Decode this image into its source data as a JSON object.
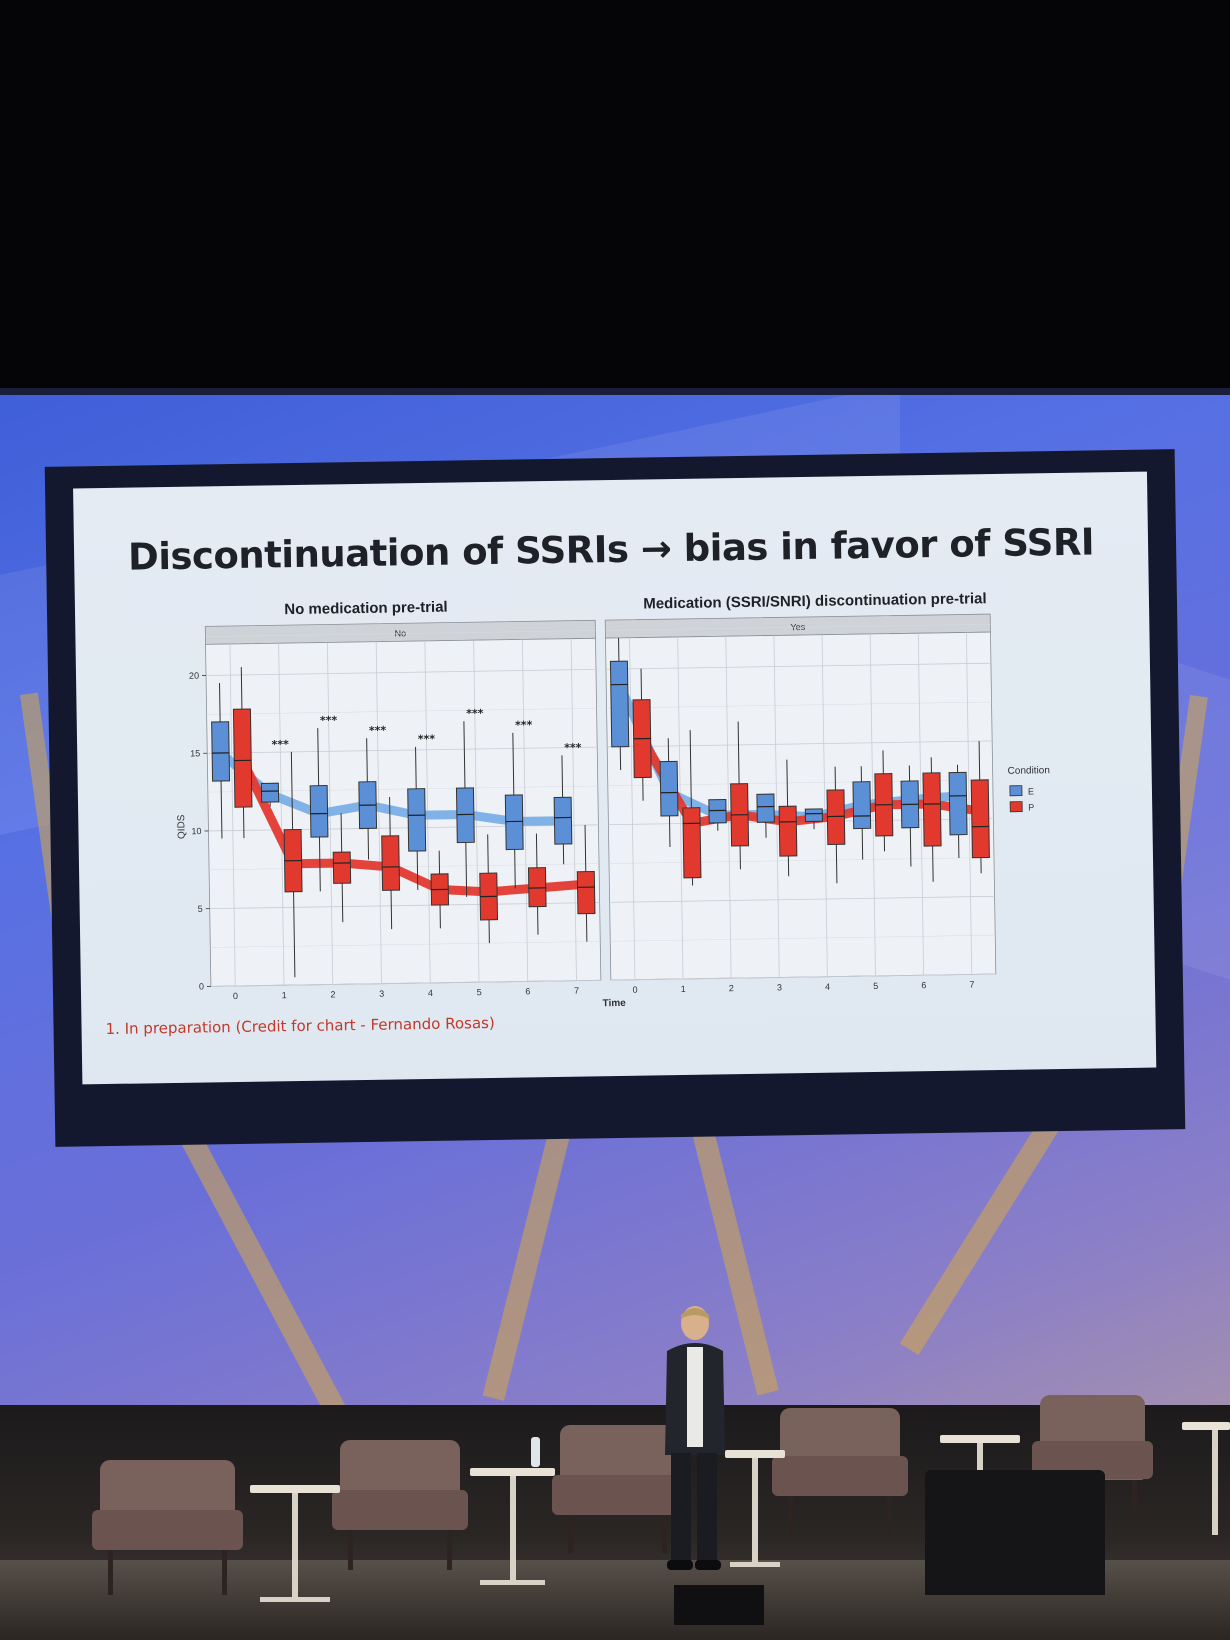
{
  "slide": {
    "title": "Discontinuation of SSRIs → bias in favor of SSRI",
    "footnote": "1. In preparation (Credit for chart - Fernando Rosas)"
  },
  "chart_data": {
    "type": "boxplot",
    "ylabel": "QIDS",
    "xlabel": "Time",
    "ylim": [
      0,
      22
    ],
    "yticks": [
      0,
      5,
      10,
      15,
      20
    ],
    "x": [
      0,
      1,
      2,
      3,
      4,
      5,
      6,
      7
    ],
    "legend": {
      "title": "Condition",
      "position": "right",
      "entries": [
        {
          "label": "E",
          "color": "#5b8fd6"
        },
        {
          "label": "P",
          "color": "#e2392f"
        }
      ]
    },
    "panels": [
      {
        "heading": "No medication pre-trial",
        "strip": "No",
        "significance": [
          "",
          "***",
          "***",
          "***",
          "***",
          "***",
          "***",
          "***"
        ],
        "series": [
          {
            "name": "E",
            "color": "#5b8fd6",
            "mean": [
              15.0,
              12.3,
              11.0,
              11.5,
              10.8,
              10.8,
              10.3,
              10.3
            ],
            "boxes": [
              {
                "min": 9.5,
                "q1": 13.2,
                "median": 15.0,
                "q3": 17.0,
                "max": 19.5
              },
              {
                "min": 11.5,
                "q1": 11.8,
                "median": 12.5,
                "q3": 13.0,
                "max": 13.0
              },
              {
                "min": 6.0,
                "q1": 9.5,
                "median": 11.0,
                "q3": 12.8,
                "max": 16.5
              },
              {
                "min": 8.0,
                "q1": 10.0,
                "median": 11.5,
                "q3": 13.0,
                "max": 15.8
              },
              {
                "min": 6.0,
                "q1": 8.5,
                "median": 10.8,
                "q3": 12.5,
                "max": 15.2
              },
              {
                "min": 5.5,
                "q1": 9.0,
                "median": 10.8,
                "q3": 12.5,
                "max": 16.8
              },
              {
                "min": 6.0,
                "q1": 8.5,
                "median": 10.3,
                "q3": 12.0,
                "max": 16.0
              },
              {
                "min": 7.5,
                "q1": 8.8,
                "median": 10.5,
                "q3": 11.8,
                "max": 14.5
              }
            ]
          },
          {
            "name": "P",
            "color": "#e2392f",
            "mean": [
              14.5,
              7.8,
              7.8,
              7.5,
              6.0,
              5.8,
              6.0,
              6.2
            ],
            "boxes": [
              {
                "min": 9.5,
                "q1": 11.5,
                "median": 14.5,
                "q3": 17.8,
                "max": 20.5
              },
              {
                "min": 0.5,
                "q1": 6.0,
                "median": 8.0,
                "q3": 10.0,
                "max": 15.0
              },
              {
                "min": 4.0,
                "q1": 6.5,
                "median": 7.8,
                "q3": 8.5,
                "max": 11.0
              },
              {
                "min": 3.5,
                "q1": 6.0,
                "median": 7.5,
                "q3": 9.5,
                "max": 12.0
              },
              {
                "min": 3.5,
                "q1": 5.0,
                "median": 6.0,
                "q3": 7.0,
                "max": 8.5
              },
              {
                "min": 2.5,
                "q1": 4.0,
                "median": 5.5,
                "q3": 7.0,
                "max": 9.5
              },
              {
                "min": 3.0,
                "q1": 4.8,
                "median": 6.0,
                "q3": 7.3,
                "max": 9.5
              },
              {
                "min": 2.5,
                "q1": 4.3,
                "median": 6.0,
                "q3": 7.0,
                "max": 10.0
              }
            ]
          }
        ]
      },
      {
        "heading": "Medication (SSRI/SNRI) discontinuation pre-trial",
        "strip": "Yes",
        "significance": [
          "",
          "",
          "",
          "",
          "",
          "",
          "",
          ""
        ],
        "series": [
          {
            "name": "E",
            "color": "#5b8fd6",
            "mean": [
              19.0,
              12.0,
              10.5,
              10.5,
              10.3,
              11.0,
              11.3,
              11.5
            ],
            "boxes": [
              {
                "min": 13.5,
                "q1": 15.0,
                "median": 19.0,
                "q3": 20.5,
                "max": 22.0
              },
              {
                "min": 8.5,
                "q1": 10.5,
                "median": 12.0,
                "q3": 14.0,
                "max": 15.5
              },
              {
                "min": 9.5,
                "q1": 10.0,
                "median": 10.8,
                "q3": 11.5,
                "max": 11.5
              },
              {
                "min": 9.0,
                "q1": 10.0,
                "median": 11.0,
                "q3": 11.8,
                "max": 11.8
              },
              {
                "min": 9.5,
                "q1": 10.0,
                "median": 10.5,
                "q3": 10.8,
                "max": 10.8
              },
              {
                "min": 7.5,
                "q1": 9.5,
                "median": 10.3,
                "q3": 12.5,
                "max": 13.5
              },
              {
                "min": 7.0,
                "q1": 9.5,
                "median": 11.0,
                "q3": 12.5,
                "max": 13.5
              },
              {
                "min": 7.5,
                "q1": 9.0,
                "median": 11.5,
                "q3": 13.0,
                "max": 13.5
              }
            ]
          },
          {
            "name": "P",
            "color": "#e2392f",
            "mean": [
              15.5,
              10.0,
              10.5,
              10.0,
              10.3,
              11.0,
              11.0,
              10.5
            ],
            "boxes": [
              {
                "min": 11.5,
                "q1": 13.0,
                "median": 15.5,
                "q3": 18.0,
                "max": 20.0
              },
              {
                "min": 6.0,
                "q1": 6.5,
                "median": 10.0,
                "q3": 11.0,
                "max": 16.0
              },
              {
                "min": 7.0,
                "q1": 8.5,
                "median": 10.5,
                "q3": 12.5,
                "max": 16.5
              },
              {
                "min": 6.5,
                "q1": 7.8,
                "median": 10.0,
                "q3": 11.0,
                "max": 14.0
              },
              {
                "min": 6.0,
                "q1": 8.5,
                "median": 10.3,
                "q3": 12.0,
                "max": 13.5
              },
              {
                "min": 8.0,
                "q1": 9.0,
                "median": 11.0,
                "q3": 13.0,
                "max": 14.5
              },
              {
                "min": 6.0,
                "q1": 8.3,
                "median": 11.0,
                "q3": 13.0,
                "max": 14.0
              },
              {
                "min": 6.5,
                "q1": 7.5,
                "median": 9.5,
                "q3": 12.5,
                "max": 15.0
              }
            ]
          }
        ]
      }
    ]
  }
}
